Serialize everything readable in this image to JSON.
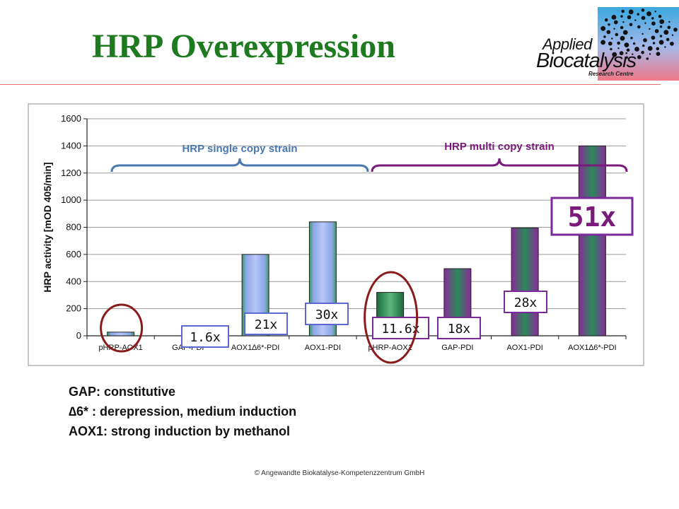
{
  "slide": {
    "title": "HRP Overexpression",
    "logo": {
      "line1": "Applied",
      "line2": "Biocatalysis",
      "line3": "Research Centre"
    },
    "notes": [
      "GAP: constitutive",
      "∆6* : derepression, medium induction",
      "AOX1: strong induction by methanol"
    ],
    "footer": "© Angewandte Biokatalyse-Kompetenzzentrum  GmbH"
  },
  "colors": {
    "title": "#1e7a1e",
    "single_copy": "#4a78b0",
    "multi_copy": "#7a1a7a",
    "highlight_circle": "#8b1a1a",
    "label_box_single": "#5a6ad0",
    "label_box_multi": "#7a2a9a"
  },
  "chart_data": {
    "type": "bar",
    "ylabel": "HRP activity [mOD 405/min]",
    "ylim": [
      0,
      1600
    ],
    "yticks": [
      0,
      200,
      400,
      600,
      800,
      1000,
      1200,
      1400,
      1600
    ],
    "grid": true,
    "categories": [
      "pHRP-AOX1",
      "GAP-PDI",
      "AOX1∆6*-PDI",
      "AOX1-PDI",
      "pHRP-AOX1",
      "GAP-PDI",
      "AOX1-PDI",
      "AOX1∆6*-PDI"
    ],
    "values": [
      27,
      0,
      600,
      840,
      320,
      495,
      795,
      1400
    ],
    "bar_style": [
      "single",
      "single",
      "single",
      "single",
      "multi",
      "multi",
      "multi",
      "multi"
    ],
    "groups": [
      {
        "label": "HRP single copy strain",
        "style": "single"
      },
      {
        "label": "HRP multi copy strain",
        "style": "multi"
      }
    ],
    "fold_labels": [
      "",
      "1.6x",
      "21x",
      "30x",
      "11.6x",
      "18x",
      "28x",
      "51x"
    ],
    "circled_bars": [
      0,
      4
    ]
  }
}
